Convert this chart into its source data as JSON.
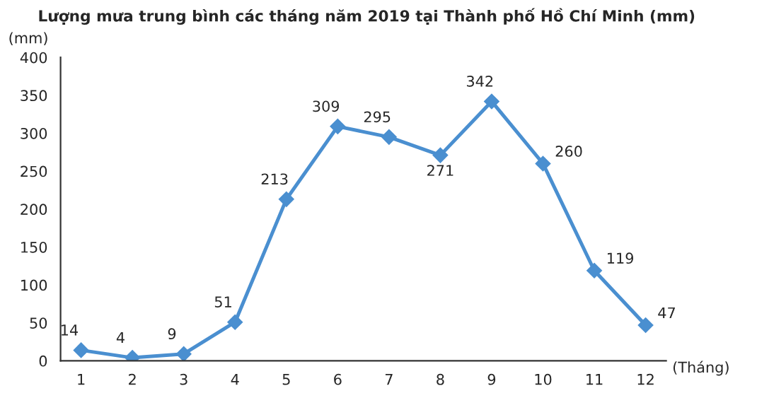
{
  "chart_data": {
    "type": "line",
    "title": "Lượng mưa trung bình các tháng năm 2019 tại Thành phố Hồ Chí Minh (mm)",
    "ylabel": "(mm)",
    "xlabel": "(Tháng)",
    "categories": [
      "1",
      "2",
      "3",
      "4",
      "5",
      "6",
      "7",
      "8",
      "9",
      "10",
      "11",
      "12"
    ],
    "series": [
      {
        "color": "#4a8fd0",
        "values": [
          14,
          4,
          9,
          51,
          213,
          309,
          295,
          271,
          342,
          260,
          119,
          47
        ]
      }
    ],
    "ylim": [
      0,
      400
    ],
    "yticks": [
      0,
      50,
      100,
      150,
      200,
      250,
      300,
      350,
      400
    ],
    "marker": "diamond",
    "line_style": "solid",
    "data_labels": true,
    "grid": false,
    "legend": false
  }
}
